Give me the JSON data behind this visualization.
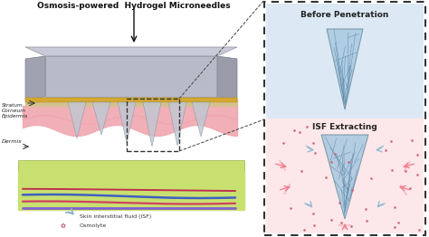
{
  "title": "Osmosis-powered  Hydrogel Microneedles",
  "bg_color": "#ffffff",
  "left_panel": {
    "labels": {
      "stratum": "Stratum\nCorneum\nEpidermis",
      "dermis": "Dermis",
      "isf": "Skin interstitial fluid (ISF)",
      "osmolyte": "Osmolyte"
    },
    "colors": {
      "base_green": "#c8e070",
      "epidermis": "#f0a8b0",
      "stratum": "#d4c090",
      "patch_side": "#b8bac8",
      "patch_top": "#c8cad8",
      "gold": "#d4a830",
      "needle": "#c0c8d4",
      "vein_purple": "#8060d0",
      "vein_red": "#d04060",
      "vein_blue": "#4060c0",
      "vein_red2": "#c03050"
    }
  },
  "right_panel": {
    "before_title": "Before Penetration",
    "isf_title": "ISF Extracting",
    "bg_before": "#dce9f5",
    "bg_isf": "#fce8ea",
    "needle_color": "#a8c8e0",
    "needle_edge": "#7090a0",
    "network_color": "#5080a0",
    "osmosis_color": "#f08090",
    "dot_color": "#cc6070",
    "isf_arrow_color": "#90b8d0"
  },
  "dashed_box_color": "#333333"
}
